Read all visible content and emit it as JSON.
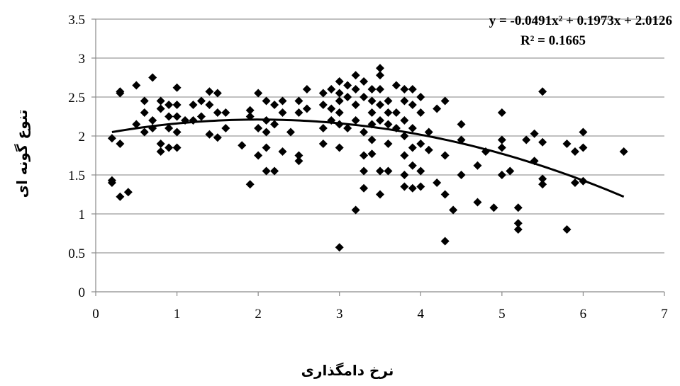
{
  "chart_data": {
    "type": "scatter",
    "xlabel": "نرخ دامگذاری",
    "ylabel": "تنوع گونه ای",
    "xlim": [
      0,
      7
    ],
    "ylim": [
      0,
      3.5
    ],
    "x_ticks": [
      "0",
      "1",
      "2",
      "3",
      "4",
      "5",
      "6",
      "7"
    ],
    "y_ticks": [
      "0",
      "0.5",
      "1",
      "1.5",
      "2",
      "2.5",
      "3",
      "3.5"
    ],
    "grid": "horizontal",
    "marker": "diamond",
    "marker_color": "#000000",
    "trendline": {
      "type": "polynomial",
      "degree": 2,
      "coefficients": [
        -0.0491,
        0.1973,
        2.0126
      ],
      "x_range": [
        0.2,
        6.5
      ],
      "equation": "y = -0.0491x² + 0.1973x + 2.0126",
      "r_squared": "R² = 0.1665"
    },
    "points": [
      [
        0.2,
        1.97
      ],
      [
        0.2,
        1.43
      ],
      [
        0.2,
        1.4
      ],
      [
        0.3,
        2.57
      ],
      [
        0.3,
        2.55
      ],
      [
        0.3,
        1.9
      ],
      [
        0.3,
        1.22
      ],
      [
        0.4,
        1.28
      ],
      [
        0.5,
        2.65
      ],
      [
        0.5,
        2.15
      ],
      [
        0.6,
        2.45
      ],
      [
        0.6,
        2.3
      ],
      [
        0.6,
        2.05
      ],
      [
        0.7,
        2.75
      ],
      [
        0.7,
        2.2
      ],
      [
        0.7,
        2.1
      ],
      [
        0.8,
        2.45
      ],
      [
        0.8,
        2.35
      ],
      [
        0.8,
        1.9
      ],
      [
        0.8,
        1.8
      ],
      [
        0.9,
        2.4
      ],
      [
        0.9,
        2.25
      ],
      [
        0.9,
        2.1
      ],
      [
        0.9,
        1.85
      ],
      [
        1.0,
        2.62
      ],
      [
        1.0,
        2.4
      ],
      [
        1.0,
        2.25
      ],
      [
        1.0,
        2.05
      ],
      [
        1.0,
        1.85
      ],
      [
        1.1,
        2.2
      ],
      [
        1.2,
        2.4
      ],
      [
        1.2,
        2.2
      ],
      [
        1.3,
        2.45
      ],
      [
        1.3,
        2.25
      ],
      [
        1.4,
        2.57
      ],
      [
        1.4,
        2.4
      ],
      [
        1.4,
        2.02
      ],
      [
        1.5,
        2.55
      ],
      [
        1.5,
        2.3
      ],
      [
        1.5,
        1.98
      ],
      [
        1.6,
        2.3
      ],
      [
        1.6,
        2.1
      ],
      [
        1.8,
        1.88
      ],
      [
        1.9,
        2.33
      ],
      [
        1.9,
        2.25
      ],
      [
        1.9,
        1.38
      ],
      [
        2.0,
        2.55
      ],
      [
        2.0,
        2.1
      ],
      [
        2.0,
        1.75
      ],
      [
        2.1,
        2.45
      ],
      [
        2.1,
        2.2
      ],
      [
        2.1,
        2.05
      ],
      [
        2.1,
        1.85
      ],
      [
        2.1,
        1.55
      ],
      [
        2.2,
        2.4
      ],
      [
        2.2,
        2.15
      ],
      [
        2.2,
        1.55
      ],
      [
        2.3,
        2.45
      ],
      [
        2.3,
        2.3
      ],
      [
        2.3,
        1.8
      ],
      [
        2.4,
        2.05
      ],
      [
        2.5,
        2.45
      ],
      [
        2.5,
        2.3
      ],
      [
        2.5,
        1.75
      ],
      [
        2.5,
        1.68
      ],
      [
        2.6,
        2.6
      ],
      [
        2.6,
        2.35
      ],
      [
        2.8,
        2.55
      ],
      [
        2.8,
        2.4
      ],
      [
        2.8,
        2.1
      ],
      [
        2.8,
        1.9
      ],
      [
        2.9,
        2.6
      ],
      [
        2.9,
        2.35
      ],
      [
        2.9,
        2.2
      ],
      [
        3.0,
        2.7
      ],
      [
        3.0,
        2.55
      ],
      [
        3.0,
        2.45
      ],
      [
        3.0,
        2.3
      ],
      [
        3.0,
        2.15
      ],
      [
        3.0,
        1.85
      ],
      [
        3.0,
        0.57
      ],
      [
        3.1,
        2.65
      ],
      [
        3.1,
        2.5
      ],
      [
        3.1,
        2.1
      ],
      [
        3.2,
        2.78
      ],
      [
        3.2,
        2.6
      ],
      [
        3.2,
        2.4
      ],
      [
        3.2,
        2.2
      ],
      [
        3.2,
        1.05
      ],
      [
        3.3,
        2.7
      ],
      [
        3.3,
        2.5
      ],
      [
        3.3,
        2.05
      ],
      [
        3.3,
        1.75
      ],
      [
        3.3,
        1.55
      ],
      [
        3.3,
        1.33
      ],
      [
        3.4,
        2.6
      ],
      [
        3.4,
        2.45
      ],
      [
        3.4,
        2.3
      ],
      [
        3.4,
        2.15
      ],
      [
        3.4,
        1.95
      ],
      [
        3.4,
        1.77
      ],
      [
        3.5,
        2.87
      ],
      [
        3.5,
        2.78
      ],
      [
        3.5,
        2.6
      ],
      [
        3.5,
        2.4
      ],
      [
        3.5,
        2.2
      ],
      [
        3.5,
        1.55
      ],
      [
        3.5,
        1.25
      ],
      [
        3.6,
        2.45
      ],
      [
        3.6,
        2.3
      ],
      [
        3.6,
        2.15
      ],
      [
        3.6,
        1.9
      ],
      [
        3.6,
        1.55
      ],
      [
        3.7,
        2.65
      ],
      [
        3.7,
        2.3
      ],
      [
        3.7,
        2.1
      ],
      [
        3.8,
        2.6
      ],
      [
        3.8,
        2.45
      ],
      [
        3.8,
        2.2
      ],
      [
        3.8,
        2.0
      ],
      [
        3.8,
        1.75
      ],
      [
        3.8,
        1.5
      ],
      [
        3.8,
        1.35
      ],
      [
        3.9,
        2.6
      ],
      [
        3.9,
        2.4
      ],
      [
        3.9,
        2.1
      ],
      [
        3.9,
        1.85
      ],
      [
        3.9,
        1.62
      ],
      [
        3.9,
        1.33
      ],
      [
        4.0,
        2.5
      ],
      [
        4.0,
        2.3
      ],
      [
        4.0,
        1.9
      ],
      [
        4.0,
        1.55
      ],
      [
        4.0,
        1.35
      ],
      [
        4.1,
        2.05
      ],
      [
        4.1,
        1.82
      ],
      [
        4.2,
        2.35
      ],
      [
        4.2,
        1.4
      ],
      [
        4.3,
        2.45
      ],
      [
        4.3,
        1.75
      ],
      [
        4.3,
        1.25
      ],
      [
        4.3,
        0.65
      ],
      [
        4.4,
        1.05
      ],
      [
        4.5,
        2.15
      ],
      [
        4.5,
        1.95
      ],
      [
        4.5,
        1.5
      ],
      [
        4.7,
        1.62
      ],
      [
        4.7,
        1.15
      ],
      [
        4.8,
        1.8
      ],
      [
        4.9,
        1.08
      ],
      [
        5.0,
        2.3
      ],
      [
        5.0,
        1.95
      ],
      [
        5.0,
        1.85
      ],
      [
        5.0,
        1.5
      ],
      [
        5.1,
        1.55
      ],
      [
        5.2,
        1.08
      ],
      [
        5.2,
        0.88
      ],
      [
        5.2,
        0.8
      ],
      [
        5.3,
        1.95
      ],
      [
        5.4,
        2.03
      ],
      [
        5.4,
        1.68
      ],
      [
        5.5,
        2.57
      ],
      [
        5.5,
        1.92
      ],
      [
        5.5,
        1.45
      ],
      [
        5.5,
        1.38
      ],
      [
        5.8,
        1.9
      ],
      [
        5.8,
        0.8
      ],
      [
        5.9,
        1.8
      ],
      [
        5.9,
        1.4
      ],
      [
        6.0,
        2.05
      ],
      [
        6.0,
        1.85
      ],
      [
        6.0,
        1.42
      ],
      [
        6.5,
        1.8
      ]
    ]
  }
}
